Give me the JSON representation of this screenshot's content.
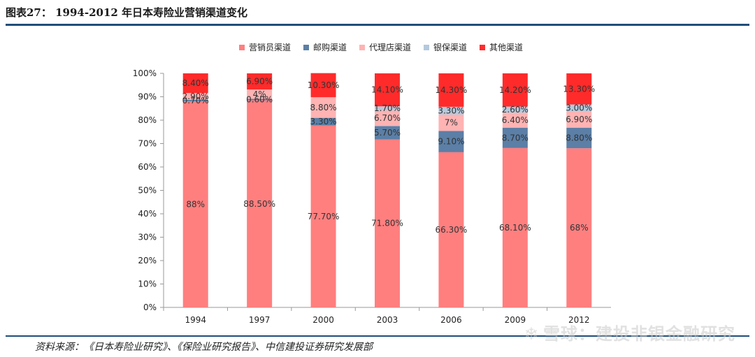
{
  "header": {
    "title": "图表27： 1994-2012 年日本寿险业营销渠道变化"
  },
  "footer": {
    "source": "资料来源：《日本寿险业研究》、《保险业研究报告》、中信建投证券研究发展部",
    "watermark": "雪球：建投非银金融研究"
  },
  "colors": {
    "rule": "#1f4e79",
    "axis": "#999999"
  },
  "chart_data": {
    "type": "bar",
    "stacked": true,
    "categories": [
      "1994",
      "1997",
      "2000",
      "2003",
      "2006",
      "2009",
      "2012"
    ],
    "ylim": [
      0,
      100
    ],
    "yticks": [
      "0%",
      "10%",
      "20%",
      "30%",
      "40%",
      "50%",
      "60%",
      "70%",
      "80%",
      "90%",
      "100%"
    ],
    "legend_position": "top-center",
    "series": [
      {
        "name": "营销员渠道",
        "color": "#ff7f7f",
        "values": [
          88,
          88.5,
          77.7,
          71.8,
          66.3,
          68.1,
          68
        ],
        "labels": [
          "88%",
          "88.50%",
          "77.70%",
          "71.80%",
          "66.30%",
          "68.10%",
          "68%"
        ]
      },
      {
        "name": "邮购渠道",
        "color": "#5b7fa6",
        "values": [
          0.7,
          0.6,
          3.3,
          5.7,
          9.1,
          8.7,
          8.8
        ],
        "labels": [
          "0.70%",
          "0.60%",
          "3.30%",
          "5.70%",
          "9.10%",
          "8.70%",
          "8.80%"
        ]
      },
      {
        "name": "代理店渠道",
        "color": "#ffb3b3",
        "values": [
          2.9,
          4,
          8.8,
          6.7,
          7,
          6.4,
          6.9
        ],
        "labels": [
          "2.90%",
          "4%",
          "8.80%",
          "6.70%",
          "7%",
          "6.40%",
          "6.90%"
        ]
      },
      {
        "name": "银保渠道",
        "color": "#b4c9dc",
        "values": [
          0,
          0,
          0,
          1.7,
          3.3,
          2.6,
          3.0
        ],
        "labels": [
          "",
          "",
          "",
          "1.70%",
          "3.30%",
          "2.60%",
          "3.00%"
        ]
      },
      {
        "name": "其他渠道",
        "color": "#ff2b2b",
        "values": [
          8.4,
          6.9,
          10.3,
          14.1,
          14.3,
          14.2,
          13.3
        ],
        "labels": [
          "8.40%",
          "6.90%",
          "10.30%",
          "14.10%",
          "14.30%",
          "14.20%",
          "13.30%"
        ]
      }
    ]
  }
}
